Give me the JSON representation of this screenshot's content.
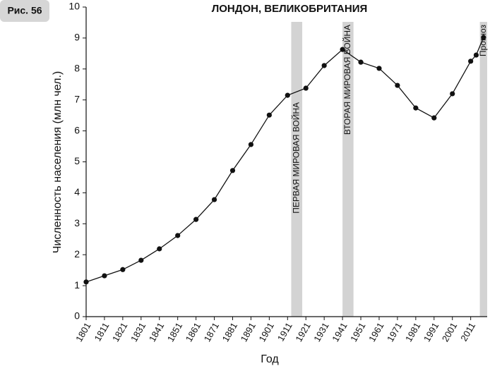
{
  "badge": "Рис. 56",
  "chart_data": {
    "type": "line",
    "title": "ЛОНДОН, ВЕЛИКОБРИТАНИЯ",
    "x_label": "Год",
    "y_label": "Численность населения (млн чел.)",
    "x": [
      1801,
      1811,
      1821,
      1831,
      1841,
      1851,
      1861,
      1871,
      1881,
      1891,
      1901,
      1911,
      1921,
      1931,
      1941,
      1951,
      1961,
      1971,
      1981,
      1991,
      2001,
      2011,
      2014,
      2018
    ],
    "values": [
      1.12,
      1.32,
      1.52,
      1.82,
      2.19,
      2.62,
      3.14,
      3.78,
      4.72,
      5.56,
      6.51,
      7.15,
      7.38,
      8.11,
      8.63,
      8.22,
      8.02,
      7.47,
      6.74,
      6.42,
      7.2,
      8.25,
      8.45,
      9.02
    ],
    "color": "#111111",
    "bands": [
      {
        "start": 1913,
        "end": 1919,
        "label": "ПЕРВАЯ МИРОВАЯ ВОЙНА"
      },
      {
        "start": 1941,
        "end": 1947,
        "label": "ВТОРАЯ МИРОВАЯ ВОЙНА"
      },
      {
        "start": 2016,
        "end": 2020,
        "label": "Прогноз"
      }
    ],
    "band_color": "#d3d3d3",
    "xlim": [
      1801,
      2020
    ],
    "ylim": [
      0,
      10
    ],
    "xticks": [
      1801,
      1811,
      1821,
      1831,
      1841,
      1851,
      1861,
      1871,
      1881,
      1891,
      1901,
      1911,
      1921,
      1931,
      1941,
      1951,
      1961,
      1971,
      1981,
      1991,
      2001,
      2011
    ],
    "yticks": [
      0,
      1,
      2,
      3,
      4,
      5,
      6,
      7,
      8,
      9,
      10
    ]
  }
}
